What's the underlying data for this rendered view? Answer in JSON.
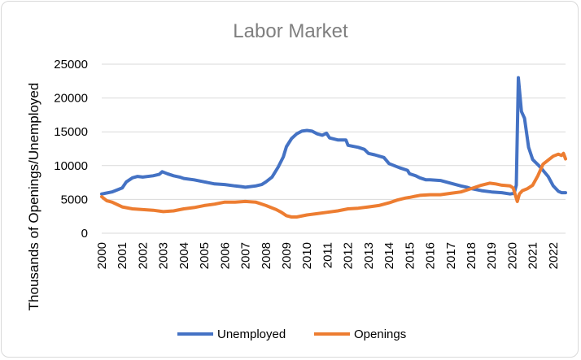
{
  "chart_data": {
    "type": "line",
    "title": "Labor Market",
    "xlabel": "",
    "ylabel": "Thousands of Openings/Unemployed",
    "ylim": [
      0,
      25000
    ],
    "yticks": [
      "0",
      "5000",
      "10000",
      "15000",
      "20000",
      "25000"
    ],
    "xticks": [
      "2000",
      "2001",
      "2002",
      "2003",
      "2004",
      "2005",
      "2006",
      "2007",
      "2008",
      "2009",
      "2010",
      "2011",
      "2012",
      "2013",
      "2014",
      "2015",
      "2016",
      "2017",
      "2018",
      "2019",
      "2020",
      "2021",
      "2022"
    ],
    "xlim": [
      2000,
      2022.6
    ],
    "grid": "horizontal",
    "legend": "bottom",
    "series": [
      {
        "name": "Unemployed",
        "color": "#4472c4",
        "points": [
          [
            2000.0,
            5800
          ],
          [
            2000.5,
            6100
          ],
          [
            2001.0,
            6700
          ],
          [
            2001.2,
            7600
          ],
          [
            2001.5,
            8200
          ],
          [
            2001.75,
            8400
          ],
          [
            2002.0,
            8300
          ],
          [
            2002.5,
            8500
          ],
          [
            2002.8,
            8700
          ],
          [
            2002.95,
            9100
          ],
          [
            2003.2,
            8800
          ],
          [
            2003.5,
            8500
          ],
          [
            2003.8,
            8300
          ],
          [
            2004.0,
            8100
          ],
          [
            2004.5,
            7900
          ],
          [
            2005.0,
            7600
          ],
          [
            2005.5,
            7300
          ],
          [
            2006.0,
            7200
          ],
          [
            2006.5,
            7000
          ],
          [
            2006.8,
            6900
          ],
          [
            2007.0,
            6800
          ],
          [
            2007.5,
            7000
          ],
          [
            2007.8,
            7200
          ],
          [
            2008.0,
            7600
          ],
          [
            2008.3,
            8300
          ],
          [
            2008.6,
            9800
          ],
          [
            2008.85,
            11300
          ],
          [
            2009.0,
            12800
          ],
          [
            2009.25,
            14000
          ],
          [
            2009.5,
            14700
          ],
          [
            2009.75,
            15100
          ],
          [
            2010.0,
            15200
          ],
          [
            2010.25,
            15100
          ],
          [
            2010.5,
            14700
          ],
          [
            2010.75,
            14500
          ],
          [
            2010.95,
            14800
          ],
          [
            2011.1,
            14100
          ],
          [
            2011.5,
            13800
          ],
          [
            2011.9,
            13800
          ],
          [
            2012.0,
            13000
          ],
          [
            2012.5,
            12700
          ],
          [
            2012.8,
            12400
          ],
          [
            2013.0,
            11800
          ],
          [
            2013.3,
            11600
          ],
          [
            2013.75,
            11200
          ],
          [
            2014.0,
            10300
          ],
          [
            2014.5,
            9700
          ],
          [
            2014.9,
            9300
          ],
          [
            2015.0,
            8800
          ],
          [
            2015.3,
            8500
          ],
          [
            2015.5,
            8200
          ],
          [
            2015.8,
            7900
          ],
          [
            2016.0,
            7900
          ],
          [
            2016.5,
            7800
          ],
          [
            2017.0,
            7400
          ],
          [
            2017.5,
            7000
          ],
          [
            2017.8,
            6800
          ],
          [
            2018.0,
            6600
          ],
          [
            2018.5,
            6300
          ],
          [
            2019.0,
            6100
          ],
          [
            2019.5,
            6000
          ],
          [
            2019.9,
            5800
          ],
          [
            2020.1,
            5900
          ],
          [
            2020.2,
            7100
          ],
          [
            2020.3,
            23000
          ],
          [
            2020.45,
            18000
          ],
          [
            2020.6,
            17000
          ],
          [
            2020.8,
            12700
          ],
          [
            2021.0,
            10900
          ],
          [
            2021.3,
            10000
          ],
          [
            2021.5,
            9300
          ],
          [
            2021.75,
            8400
          ],
          [
            2022.0,
            7000
          ],
          [
            2022.25,
            6200
          ],
          [
            2022.4,
            6000
          ],
          [
            2022.6,
            6000
          ]
        ]
      },
      {
        "name": "Openings",
        "color": "#ed7d31",
        "points": [
          [
            2000.0,
            5400
          ],
          [
            2000.25,
            4800
          ],
          [
            2000.5,
            4600
          ],
          [
            2001.0,
            3900
          ],
          [
            2001.5,
            3600
          ],
          [
            2002.0,
            3500
          ],
          [
            2002.5,
            3400
          ],
          [
            2003.0,
            3200
          ],
          [
            2003.5,
            3300
          ],
          [
            2004.0,
            3600
          ],
          [
            2004.5,
            3800
          ],
          [
            2005.0,
            4100
          ],
          [
            2005.5,
            4300
          ],
          [
            2006.0,
            4600
          ],
          [
            2006.5,
            4600
          ],
          [
            2007.0,
            4700
          ],
          [
            2007.5,
            4600
          ],
          [
            2008.0,
            4100
          ],
          [
            2008.5,
            3500
          ],
          [
            2008.75,
            3100
          ],
          [
            2009.0,
            2600
          ],
          [
            2009.25,
            2400
          ],
          [
            2009.5,
            2400
          ],
          [
            2010.0,
            2700
          ],
          [
            2010.5,
            2900
          ],
          [
            2011.0,
            3100
          ],
          [
            2011.5,
            3300
          ],
          [
            2012.0,
            3600
          ],
          [
            2012.5,
            3700
          ],
          [
            2013.0,
            3900
          ],
          [
            2013.5,
            4100
          ],
          [
            2014.0,
            4500
          ],
          [
            2014.4,
            4900
          ],
          [
            2014.8,
            5200
          ],
          [
            2015.0,
            5300
          ],
          [
            2015.5,
            5600
          ],
          [
            2016.0,
            5700
          ],
          [
            2016.5,
            5700
          ],
          [
            2017.0,
            5900
          ],
          [
            2017.5,
            6100
          ],
          [
            2018.0,
            6600
          ],
          [
            2018.5,
            7100
          ],
          [
            2018.9,
            7400
          ],
          [
            2019.2,
            7300
          ],
          [
            2019.5,
            7100
          ],
          [
            2019.9,
            7000
          ],
          [
            2020.05,
            6700
          ],
          [
            2020.25,
            4700
          ],
          [
            2020.35,
            5800
          ],
          [
            2020.5,
            6300
          ],
          [
            2020.75,
            6600
          ],
          [
            2021.0,
            7100
          ],
          [
            2021.25,
            8500
          ],
          [
            2021.5,
            10200
          ],
          [
            2021.75,
            10800
          ],
          [
            2022.0,
            11400
          ],
          [
            2022.25,
            11700
          ],
          [
            2022.4,
            11500
          ],
          [
            2022.5,
            11800
          ],
          [
            2022.6,
            11000
          ]
        ]
      }
    ]
  }
}
